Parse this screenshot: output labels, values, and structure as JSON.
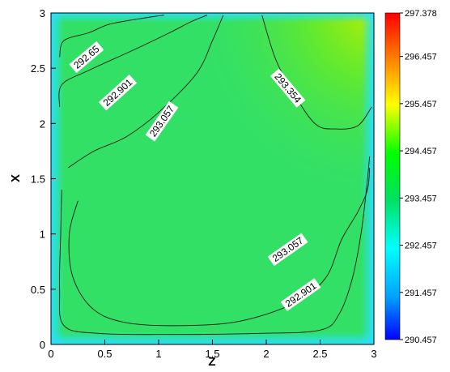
{
  "chart_data": {
    "type": "heatmap",
    "title": "",
    "xlabel": "Z",
    "ylabel": "X",
    "xlim": [
      0,
      3
    ],
    "ylim": [
      0,
      3
    ],
    "x_ticks": [
      "0",
      "0.5",
      "1",
      "1.5",
      "2",
      "2.5",
      "3"
    ],
    "y_ticks": [
      "0",
      "0.5",
      "1",
      "1.5",
      "2",
      "2.5",
      "3"
    ],
    "colorbar": {
      "min": 290.457,
      "max": 297.378,
      "labels": [
        "297.378",
        "296.457",
        "295.457",
        "294.457",
        "293.457",
        "292.457",
        "291.457",
        "290.457"
      ],
      "values": [
        297.378,
        296.457,
        295.457,
        294.457,
        293.457,
        292.457,
        291.457,
        290.457
      ],
      "colormap": [
        "#0000ff",
        "#00a0ff",
        "#00ffff",
        "#00e060",
        "#00ff00",
        "#ffff00",
        "#ff8000",
        "#ff0000"
      ]
    },
    "contours": [
      {
        "level": "292.65",
        "points": [
          [
            0.08,
            2.6
          ],
          [
            0.12,
            2.75
          ],
          [
            0.35,
            2.82
          ],
          [
            0.55,
            2.9
          ],
          [
            0.9,
            2.96
          ],
          [
            1.05,
            2.98
          ]
        ]
      },
      {
        "level": "292.901",
        "points": [
          [
            0.08,
            2.15
          ],
          [
            0.1,
            2.35
          ],
          [
            0.35,
            2.48
          ],
          [
            0.8,
            2.68
          ],
          [
            1.1,
            2.82
          ],
          [
            1.3,
            2.92
          ],
          [
            1.45,
            2.98
          ]
        ]
      },
      {
        "level": "293.057",
        "points": [
          [
            0.16,
            1.6
          ],
          [
            0.4,
            1.75
          ],
          [
            0.7,
            1.88
          ],
          [
            1.0,
            2.1
          ],
          [
            1.35,
            2.45
          ],
          [
            1.5,
            2.75
          ],
          [
            1.6,
            2.98
          ]
        ]
      },
      {
        "level": "293.354",
        "points": [
          [
            1.96,
            2.98
          ],
          [
            2.08,
            2.6
          ],
          [
            2.22,
            2.33
          ],
          [
            2.45,
            2.0
          ],
          [
            2.65,
            1.95
          ],
          [
            2.85,
            1.98
          ],
          [
            2.98,
            2.15
          ]
        ]
      },
      {
        "level": "293.057",
        "points": [
          [
            0.25,
            1.3
          ],
          [
            0.17,
            1.0
          ],
          [
            0.2,
            0.62
          ],
          [
            0.38,
            0.33
          ],
          [
            0.68,
            0.2
          ],
          [
            1.2,
            0.17
          ],
          [
            1.75,
            0.21
          ],
          [
            2.25,
            0.37
          ],
          [
            2.55,
            0.6
          ],
          [
            2.7,
            0.95
          ],
          [
            2.85,
            1.2
          ],
          [
            2.94,
            1.4
          ],
          [
            2.96,
            1.6
          ]
        ]
      },
      {
        "level": "292.901",
        "points": [
          [
            0.1,
            1.4
          ],
          [
            0.09,
            1.0
          ],
          [
            0.08,
            0.5
          ],
          [
            0.12,
            0.17
          ],
          [
            0.45,
            0.1
          ],
          [
            1.1,
            0.09
          ],
          [
            1.9,
            0.1
          ],
          [
            2.5,
            0.13
          ],
          [
            2.68,
            0.28
          ],
          [
            2.8,
            0.6
          ],
          [
            2.88,
            1.0
          ],
          [
            2.93,
            1.4
          ],
          [
            2.96,
            1.7
          ]
        ]
      }
    ],
    "contour_labels": [
      {
        "text": "292.65",
        "x": 0.33,
        "y": 2.6,
        "angle": -40
      },
      {
        "text": "292.901",
        "x": 0.62,
        "y": 2.28,
        "angle": -42
      },
      {
        "text": "293.057",
        "x": 1.03,
        "y": 2.02,
        "angle": -55
      },
      {
        "text": "293.354",
        "x": 2.2,
        "y": 2.32,
        "angle": 50
      },
      {
        "text": "293.057",
        "x": 2.2,
        "y": 0.86,
        "angle": -35
      },
      {
        "text": "292.901",
        "x": 2.32,
        "y": 0.45,
        "angle": -35
      }
    ]
  }
}
